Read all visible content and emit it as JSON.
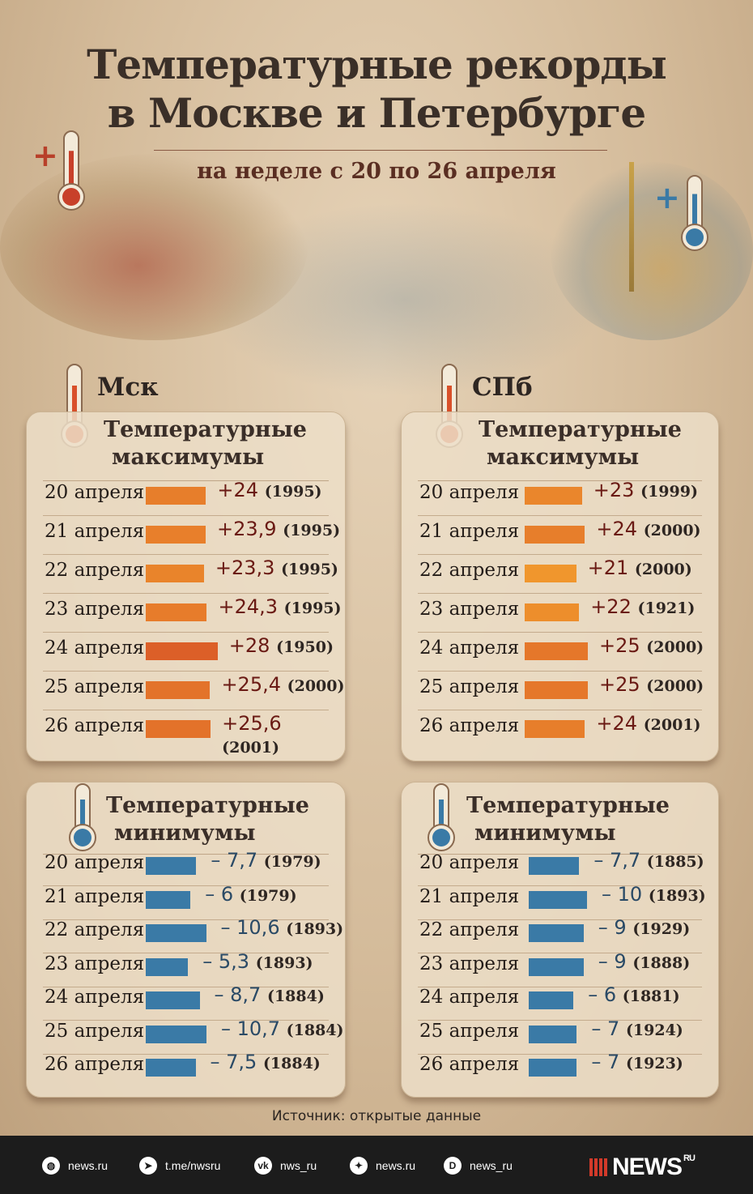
{
  "title_line1": "Температурные рекорды",
  "title_line2": "в Москве и Петербурге",
  "subtitle": "на неделе с 20 по 26 апреля",
  "colors": {
    "max_bar": "#e8862c",
    "min_bar": "#3a7aa6",
    "max_value": "#6a1a14",
    "min_value": "#2a4a66"
  },
  "chart_data": {
    "type": "table",
    "cities": [
      {
        "name": "Мск",
        "max": {
          "title1": "Температурные",
          "title2": "максимумы",
          "rows": [
            {
              "date": "20 апреля",
              "value": "+24",
              "year": "(1995)",
              "num": 24
            },
            {
              "date": "21 апреля",
              "value": "+23,9",
              "year": "(1995)",
              "num": 23.9
            },
            {
              "date": "22 апреля",
              "value": "+23,3",
              "year": "(1995)",
              "num": 23.3
            },
            {
              "date": "23 апреля",
              "value": "+24,3",
              "year": "(1995)",
              "num": 24.3
            },
            {
              "date": "24 апреля",
              "value": "+28",
              "year": "(1950)",
              "num": 28
            },
            {
              "date": "25 апреля",
              "value": "+25,4",
              "year": "(2000)",
              "num": 25.4
            },
            {
              "date": "26 апреля",
              "value": "+25,6",
              "year": "(2001)",
              "num": 25.6
            }
          ]
        },
        "min": {
          "title1": "Температурные",
          "title2": "минимумы",
          "rows": [
            {
              "date": "20 апреля",
              "value": "– 7,7",
              "year": "(1979)",
              "num": -7.7
            },
            {
              "date": "21 апреля",
              "value": "– 6",
              "year": "(1979)",
              "num": -6
            },
            {
              "date": "22 апреля",
              "value": "– 10,6",
              "year": "(1893)",
              "num": -10.6
            },
            {
              "date": "23 апреля",
              "value": "– 5,3",
              "year": "(1893)",
              "num": -5.3
            },
            {
              "date": "24 апреля",
              "value": "– 8,7",
              "year": "(1884)",
              "num": -8.7
            },
            {
              "date": "25 апреля",
              "value": "– 10,7",
              "year": "(1884)",
              "num": -10.7
            },
            {
              "date": "26 апреля",
              "value": "– 7,5",
              "year": "(1884)",
              "num": -7.5
            }
          ]
        }
      },
      {
        "name": "СПб",
        "max": {
          "title1": "Температурные",
          "title2": "максимумы",
          "rows": [
            {
              "date": "20 апреля",
              "value": "+23",
              "year": "(1999)",
              "num": 23
            },
            {
              "date": "21 апреля",
              "value": "+24",
              "year": "(2000)",
              "num": 24
            },
            {
              "date": "22 апреля",
              "value": "+21",
              "year": "(2000)",
              "num": 21
            },
            {
              "date": "23 апреля",
              "value": "+22",
              "year": "(1921)",
              "num": 22
            },
            {
              "date": "24 апреля",
              "value": "+25",
              "year": "(2000)",
              "num": 25
            },
            {
              "date": "25 апреля",
              "value": "+25",
              "year": "(2000)",
              "num": 25
            },
            {
              "date": "26 апреля",
              "value": "+24",
              "year": "(2001)",
              "num": 24
            }
          ]
        },
        "min": {
          "title1": "Температурные",
          "title2": "минимумы",
          "rows": [
            {
              "date": "20 апреля",
              "value": "– 7,7",
              "year": "(1885)",
              "num": -7.7
            },
            {
              "date": "21 апреля",
              "value": "– 10",
              "year": "(1893)",
              "num": -10
            },
            {
              "date": "22 апреля",
              "value": "– 9",
              "year": "(1929)",
              "num": -9
            },
            {
              "date": "23 апреля",
              "value": "– 9",
              "year": "(1888)",
              "num": -9
            },
            {
              "date": "24 апреля",
              "value": "– 6",
              "year": "(1881)",
              "num": -6
            },
            {
              "date": "25 апреля",
              "value": "– 7",
              "year": "(1924)",
              "num": -7
            },
            {
              "date": "26 апреля",
              "value": "– 7",
              "year": "(1923)",
              "num": -7
            }
          ]
        }
      }
    ]
  },
  "source": "Источник: открытые данные",
  "footer": {
    "links": [
      {
        "icon": "globe-icon",
        "label": "news.ru"
      },
      {
        "icon": "telegram-icon",
        "label": "t.me/nwsru"
      },
      {
        "icon": "vk-icon",
        "label": "nws_ru"
      },
      {
        "icon": "zen-icon",
        "label": "news.ru"
      },
      {
        "icon": "dzen-circle-icon",
        "label": "news_ru"
      }
    ],
    "logo": "NEWS",
    "logo_sup": "RU"
  }
}
